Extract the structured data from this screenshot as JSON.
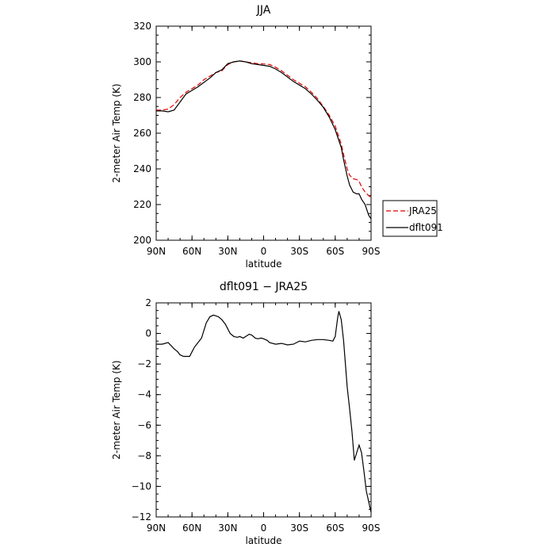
{
  "chart_data": [
    {
      "type": "line",
      "title": "JJA",
      "xlabel": "latitude",
      "ylabel": "2-meter Air Temp (K)",
      "xlim": [
        90,
        -90
      ],
      "ylim": [
        200,
        320
      ],
      "xticks": [
        90,
        60,
        30,
        0,
        -30,
        -60,
        -90
      ],
      "xtick_labels": [
        "90N",
        "60N",
        "30N",
        "0",
        "30S",
        "60S",
        "90S"
      ],
      "yticks": [
        200,
        220,
        240,
        260,
        280,
        300,
        320
      ],
      "ytick_labels": [
        "200",
        "220",
        "240",
        "260",
        "280",
        "300",
        "320"
      ],
      "grid": false,
      "legend": "outside-right",
      "series": [
        {
          "name": "JRA25",
          "color": "#e00000",
          "dash": "dashed",
          "x": [
            90,
            85,
            80,
            75,
            70,
            65,
            60,
            55,
            50,
            45,
            40,
            35,
            30,
            25,
            20,
            15,
            10,
            5,
            0,
            -5,
            -10,
            -15,
            -20,
            -25,
            -30,
            -35,
            -40,
            -45,
            -50,
            -55,
            -60,
            -62,
            -65,
            -67,
            -70,
            -72,
            -75,
            -78,
            -80,
            -82,
            -85,
            -88,
            -90
          ],
          "y": [
            273,
            273,
            273.5,
            276,
            280,
            283,
            285,
            287,
            290,
            292,
            294,
            295,
            298.5,
            300,
            300.5,
            300,
            299.5,
            299,
            298.8,
            298.5,
            297,
            295,
            292.5,
            290,
            288,
            286,
            283,
            279.5,
            275,
            270,
            264,
            260,
            254,
            248,
            240,
            236.5,
            234.5,
            234,
            233,
            230,
            227,
            225,
            224
          ]
        },
        {
          "name": "dflt091",
          "color": "#000000",
          "dash": "solid",
          "x": [
            90,
            85,
            80,
            75,
            70,
            65,
            60,
            55,
            50,
            45,
            40,
            35,
            30,
            25,
            20,
            15,
            10,
            5,
            0,
            -5,
            -10,
            -15,
            -20,
            -25,
            -30,
            -35,
            -40,
            -45,
            -50,
            -55,
            -60,
            -62,
            -65,
            -67,
            -70,
            -72,
            -75,
            -78,
            -80,
            -82,
            -85,
            -88,
            -90
          ],
          "y": [
            272.5,
            272.5,
            272,
            273,
            277.5,
            282,
            284,
            286,
            288.5,
            291,
            294,
            295.5,
            299,
            300,
            300.5,
            300,
            299,
            298.5,
            298,
            297.5,
            296,
            294,
            291.5,
            289,
            287,
            285,
            282,
            278.5,
            274.5,
            269,
            262,
            258,
            252,
            245,
            236,
            231,
            227,
            226,
            226,
            223,
            220,
            214,
            212
          ]
        }
      ]
    },
    {
      "type": "line",
      "title": "dflt091 − JRA25",
      "xlabel": "latitude",
      "ylabel": "2-meter Air Temp (K)",
      "xlim": [
        90,
        -90
      ],
      "ylim": [
        -12,
        2
      ],
      "xticks": [
        90,
        60,
        30,
        0,
        -30,
        -60,
        -90
      ],
      "xtick_labels": [
        "90N",
        "60N",
        "30N",
        "0",
        "30S",
        "60S",
        "90S"
      ],
      "yticks": [
        -12,
        -10,
        -8,
        -6,
        -4,
        -2,
        0,
        2
      ],
      "ytick_labels": [
        "−12",
        "−10",
        "−8",
        "−6",
        "−4",
        "−2",
        "0",
        "2"
      ],
      "grid": false,
      "series": [
        {
          "color": "#000000",
          "dash": "solid",
          "x": [
            90,
            85,
            80,
            75,
            72,
            70,
            67,
            65,
            62,
            60,
            58,
            55,
            52,
            50,
            48,
            45,
            42,
            40,
            38,
            35,
            32,
            30,
            28,
            25,
            22,
            20,
            17,
            15,
            12,
            10,
            7,
            5,
            2,
            0,
            -3,
            -5,
            -10,
            -15,
            -20,
            -25,
            -30,
            -35,
            -40,
            -45,
            -50,
            -55,
            -58,
            -60,
            -62,
            -63,
            -65,
            -67,
            -70,
            -72,
            -74,
            -76,
            -78,
            -80,
            -82,
            -84,
            -86,
            -88,
            -90
          ],
          "y": [
            -0.7,
            -0.7,
            -0.6,
            -1.0,
            -1.2,
            -1.4,
            -1.5,
            -1.5,
            -1.5,
            -1.2,
            -0.9,
            -0.6,
            -0.3,
            0.2,
            0.7,
            1.1,
            1.2,
            1.15,
            1.1,
            0.9,
            0.6,
            0.3,
            0.0,
            -0.2,
            -0.25,
            -0.2,
            -0.3,
            -0.2,
            -0.05,
            -0.1,
            -0.3,
            -0.35,
            -0.3,
            -0.35,
            -0.45,
            -0.6,
            -0.7,
            -0.65,
            -0.75,
            -0.7,
            -0.5,
            -0.55,
            -0.45,
            -0.4,
            -0.4,
            -0.45,
            -0.5,
            -0.2,
            1.0,
            1.45,
            0.9,
            -0.5,
            -3.5,
            -4.9,
            -6.4,
            -8.3,
            -7.8,
            -7.3,
            -7.8,
            -9.0,
            -10.3,
            -11.0,
            -11.7
          ]
        }
      ]
    }
  ]
}
